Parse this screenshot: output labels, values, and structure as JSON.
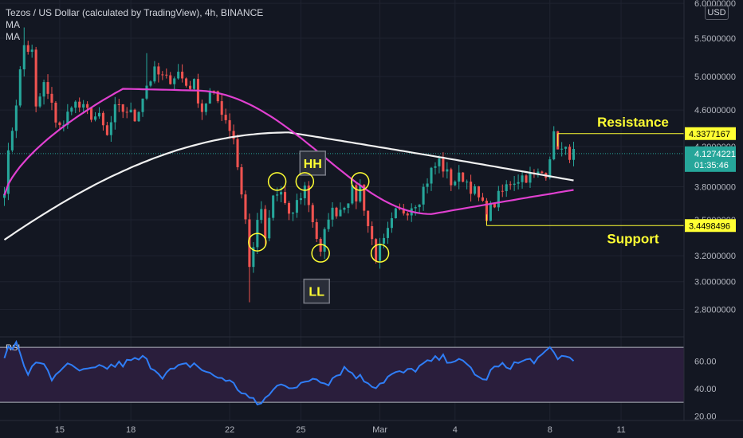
{
  "header": {
    "symbol_line": "Tezos / US Dollar (calculated by TradingView), 4h, BINANCE",
    "indicators": [
      "MA",
      "MA"
    ],
    "currency": "USD"
  },
  "colors": {
    "background": "#131722",
    "grid": "#1f2330",
    "up": "#26a69a",
    "down": "#ef5350",
    "ma_fast": "#e040d0",
    "ma_slow": "#f0f0f0",
    "annotation": "#ffff33",
    "rsi_line": "#2f7df6",
    "rsi_band": "#2a1e3c",
    "axis_text": "#b2b5be"
  },
  "chart_data": [
    {
      "type": "candlestick",
      "y_ticks": [
        "6.0000000",
        "5.5000000",
        "5.0000000",
        "4.6000000",
        "4.2000000",
        "3.8000000",
        "3.5000000",
        "3.2000000",
        "3.0000000",
        "2.8000000"
      ],
      "y_tick_values": [
        6.0,
        5.5,
        5.0,
        4.6,
        4.2,
        3.8,
        3.5,
        3.2,
        3.0,
        2.8
      ],
      "y_scale": "log",
      "ylim": [
        2.62,
        6.05
      ],
      "x_ticks": [
        "15",
        "18",
        "22",
        "25",
        "Mar",
        "4",
        "8",
        "11"
      ],
      "x_tick_index": [
        14,
        32,
        57,
        75,
        95,
        114,
        138,
        156
      ],
      "current_price": "4.1274221",
      "countdown": "01:35:46",
      "ohlc": [],
      "ma_fast": [],
      "ma_slow": [],
      "levels": [
        {
          "name": "Resistance",
          "value": 4.3377167,
          "label": "4.3377167",
          "from_index": 140
        },
        {
          "name": "Support",
          "value": 3.4498496,
          "label": "3.4498496",
          "from_index": 122
        }
      ],
      "annotations": [
        {
          "text": "HH",
          "index": 78,
          "value": 4.03
        },
        {
          "text": "LL",
          "index": 79,
          "value": 2.93
        }
      ],
      "swing_circles": [
        {
          "index": 64,
          "value": 3.31
        },
        {
          "index": 69,
          "value": 3.85
        },
        {
          "index": 76,
          "value": 3.85
        },
        {
          "index": 80,
          "value": 3.22
        },
        {
          "index": 90,
          "value": 3.85
        },
        {
          "index": 95,
          "value": 3.22
        }
      ],
      "grid": true
    },
    {
      "type": "line",
      "title": "RSI",
      "y_ticks": [
        "60.00",
        "40.00",
        "20.00"
      ],
      "y_tick_values": [
        60,
        40,
        20
      ],
      "ylim": [
        18.5,
        77
      ],
      "band": [
        30,
        70
      ],
      "values": [],
      "grid": true
    }
  ]
}
